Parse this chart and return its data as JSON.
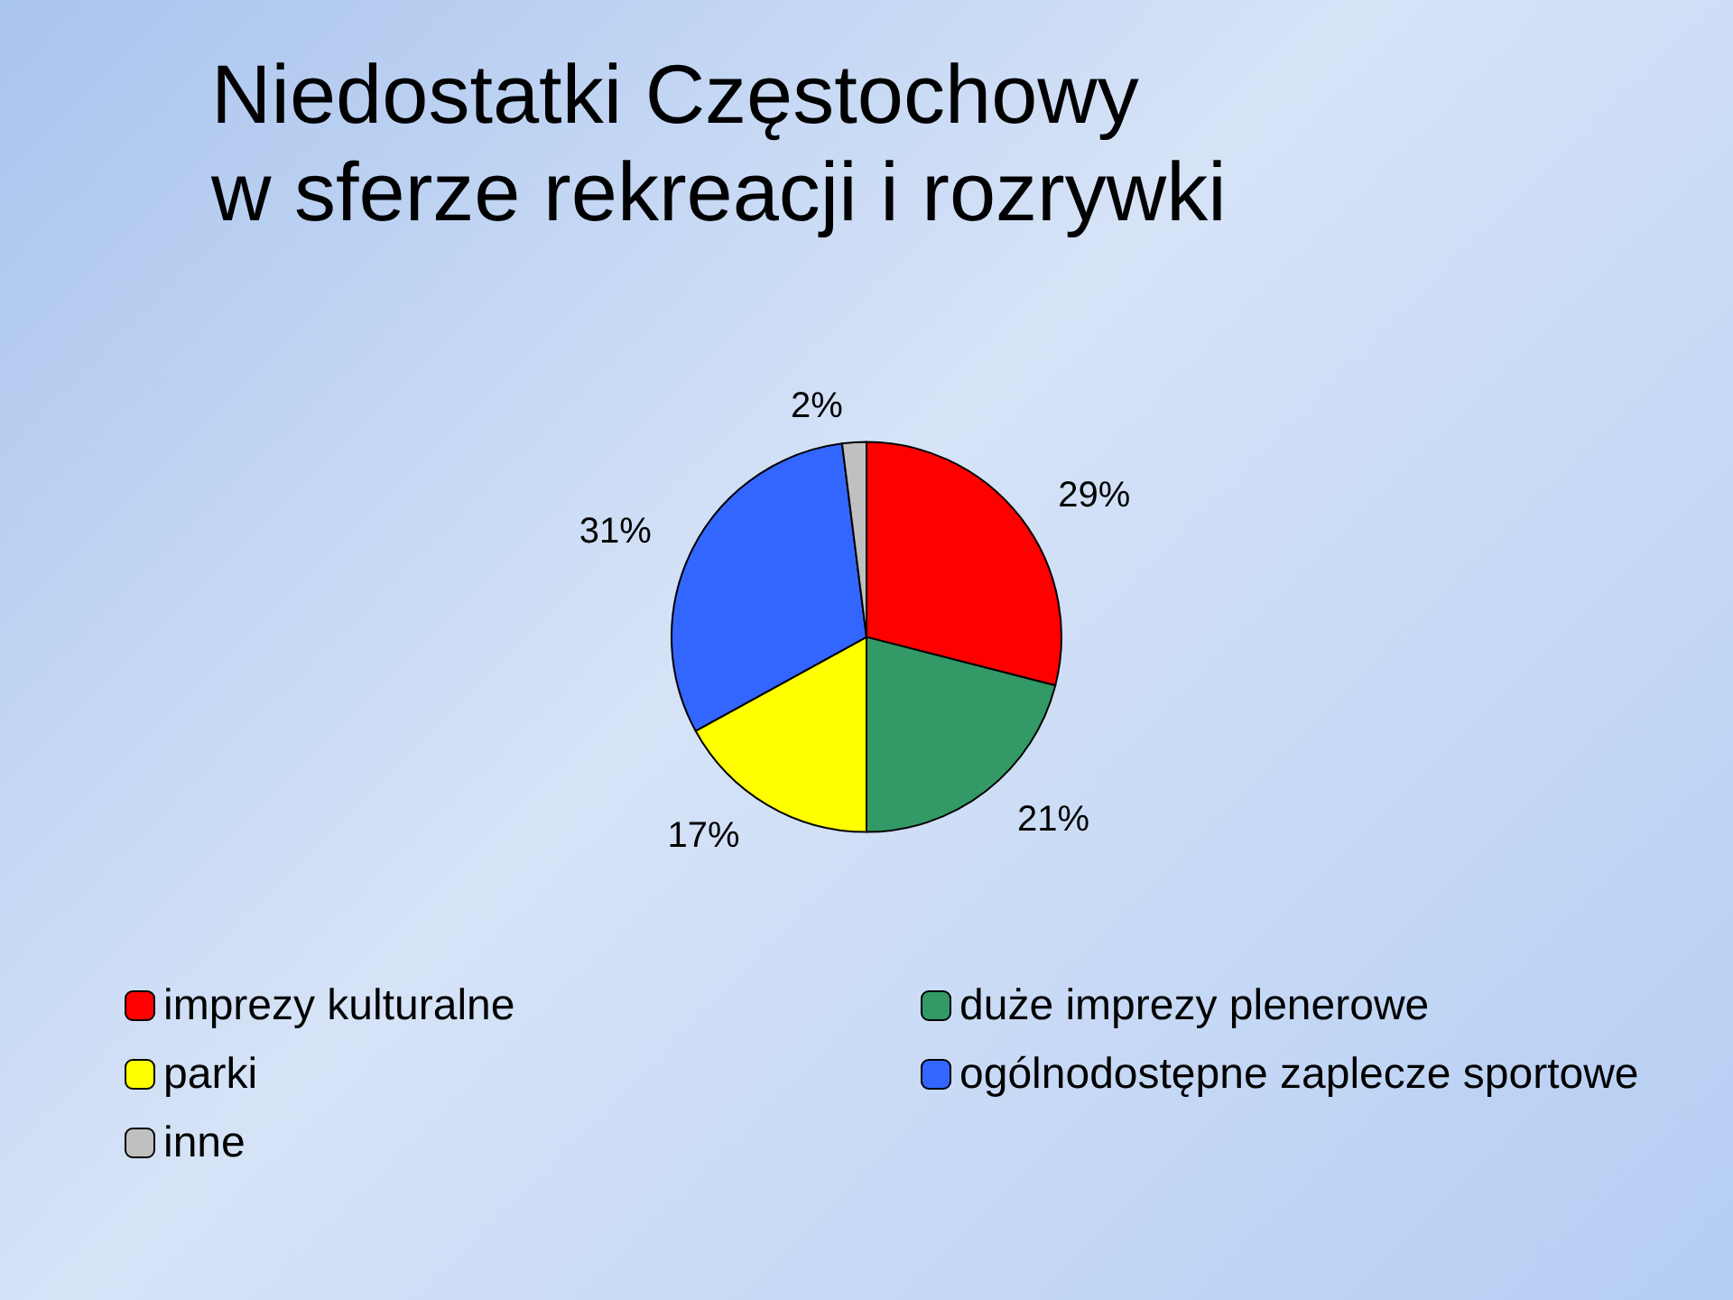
{
  "chart_data": {
    "type": "pie",
    "title": "Niedostatki Częstochowy\nw sferze rekreacji i rozrywki",
    "categories": [
      "imprezy kulturalne",
      "duże imprezy plenerowe",
      "parki",
      "ogólnodostępne zaplecze sportowe",
      "inne"
    ],
    "values": [
      29,
      21,
      17,
      31,
      2
    ],
    "value_labels": [
      "29%",
      "21%",
      "17%",
      "31%",
      "2%"
    ],
    "colors": [
      "#ff0000",
      "#339966",
      "#ffff00",
      "#3366ff",
      "#c0c0c0"
    ],
    "legend": "bottom"
  }
}
